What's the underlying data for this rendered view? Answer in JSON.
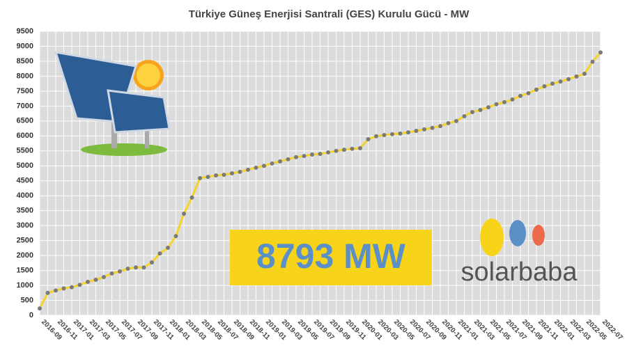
{
  "chart_data": {
    "type": "line",
    "title": "Türkiye Güneş Enerjisi Santrali (GES) Kurulu Gücü - MW",
    "categories": [
      "2016-09",
      null,
      "2016-11",
      null,
      "2017-01",
      null,
      "2017-03",
      null,
      "2017-05",
      null,
      "2017-07",
      null,
      "2017-09",
      null,
      "2017-11",
      null,
      "2018-01",
      null,
      "2018-03",
      null,
      "2018-05",
      null,
      "2018-07",
      null,
      "2018-09",
      null,
      "2018-11",
      null,
      "2019-01",
      null,
      "2019-03",
      null,
      "2019-05",
      null,
      "2019-07",
      null,
      "2019-09",
      null,
      "2019-11",
      null,
      "2020-01",
      null,
      "2020-03",
      null,
      "2020-05",
      null,
      "2020-07",
      null,
      "2020-09",
      null,
      "2020-11",
      null,
      "2021-01",
      null,
      "2021-03",
      null,
      "2021-05",
      null,
      "2021-07",
      null,
      "2021-09",
      null,
      "2021-11",
      null,
      "2022-01",
      null,
      "2022-03",
      null,
      "2022-05",
      null,
      "2022-07"
    ],
    "series": [
      {
        "name": "Kurulu Güç",
        "color": "#f5d327",
        "values": [
          230,
          750,
          830,
          900,
          940,
          1020,
          1120,
          1190,
          1280,
          1400,
          1470,
          1560,
          1600,
          1600,
          1770,
          2070,
          2260,
          2650,
          3400,
          3940,
          4590,
          4630,
          4680,
          4700,
          4750,
          4800,
          4870,
          4940,
          5000,
          5080,
          5150,
          5220,
          5290,
          5330,
          5380,
          5400,
          5450,
          5500,
          5540,
          5570,
          5590,
          5890,
          5990,
          6030,
          6060,
          6080,
          6120,
          6170,
          6220,
          6270,
          6330,
          6430,
          6500,
          6660,
          6800,
          6870,
          6960,
          7060,
          7130,
          7220,
          7340,
          7430,
          7550,
          7660,
          7750,
          7820,
          7900,
          7990,
          8080,
          8480,
          8793
        ]
      }
    ],
    "ylim": [
      0,
      9500
    ],
    "yticks": [
      0,
      500,
      1000,
      1500,
      2000,
      2500,
      3000,
      3500,
      4000,
      4500,
      5000,
      5500,
      6000,
      6500,
      7000,
      7500,
      8000,
      8500,
      9000,
      9500
    ],
    "grid": true,
    "annotation": "8793 MW",
    "logo": "solarbaba"
  }
}
